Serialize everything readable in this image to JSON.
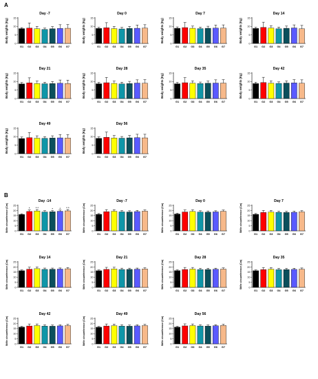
{
  "panels": [
    {
      "label": "A"
    },
    {
      "label": "B"
    }
  ],
  "colors": [
    "#000000",
    "#ff0000",
    "#ffff00",
    "#0f96a8",
    "#0b4f5c",
    "#5a5aff",
    "#f7b98a"
  ],
  "chart_data": [
    {
      "type": "bar",
      "panel": "A",
      "title": "Day -7",
      "ylabel": "Body weights (Kg)",
      "ylim": [
        0,
        15
      ],
      "yticks": [
        0,
        5,
        10,
        15
      ],
      "categories": [
        "G1",
        "G2",
        "G3",
        "G4",
        "G5",
        "G6",
        "G7"
      ],
      "values": [
        8.7,
        9.0,
        8.6,
        8.2,
        8.6,
        8.8,
        8.9
      ],
      "errors": [
        0.6,
        3.0,
        1.4,
        0.8,
        1.3,
        2.2,
        2.2
      ],
      "sig": [
        "",
        "",
        "",
        "",
        "",
        "",
        ""
      ]
    },
    {
      "type": "bar",
      "panel": "A",
      "title": "Day 0",
      "ylabel": "Body weights (Kg)",
      "ylim": [
        0,
        15
      ],
      "yticks": [
        0,
        5,
        10,
        15
      ],
      "categories": [
        "G1",
        "G2",
        "G3",
        "G4",
        "G5",
        "G6",
        "G7"
      ],
      "values": [
        8.8,
        9.2,
        8.7,
        8.5,
        8.8,
        8.9,
        9.0
      ],
      "errors": [
        0.7,
        3.0,
        1.3,
        0.9,
        1.2,
        1.9,
        2.0
      ],
      "sig": [
        "",
        "",
        "",
        "",
        "",
        "",
        ""
      ]
    },
    {
      "type": "bar",
      "panel": "A",
      "title": "Day 7",
      "ylabel": "Body weights (Kg)",
      "ylim": [
        0,
        15
      ],
      "yticks": [
        0,
        5,
        10,
        15
      ],
      "categories": [
        "G1",
        "G2",
        "G3",
        "G4",
        "G5",
        "G6",
        "G7"
      ],
      "values": [
        8.9,
        9.3,
        8.9,
        8.7,
        8.9,
        9.0,
        9.0
      ],
      "errors": [
        0.8,
        3.0,
        1.3,
        0.9,
        1.2,
        1.8,
        1.9
      ],
      "sig": [
        "",
        "",
        "",
        "",
        "",
        "",
        ""
      ]
    },
    {
      "type": "bar",
      "panel": "A",
      "title": "Day 14",
      "ylabel": "Body weights (Kg)",
      "ylim": [
        0,
        15
      ],
      "yticks": [
        0,
        5,
        10,
        15
      ],
      "categories": [
        "G1",
        "G2",
        "G3",
        "G4",
        "G5",
        "G6",
        "G7"
      ],
      "values": [
        8.8,
        9.4,
        9.0,
        8.6,
        8.9,
        9.1,
        8.6
      ],
      "errors": [
        0.7,
        3.1,
        1.4,
        1.0,
        1.3,
        1.8,
        2.0
      ],
      "sig": [
        "",
        "",
        "",
        "",
        "",
        "",
        ""
      ]
    },
    {
      "type": "bar",
      "panel": "A",
      "title": "Day 21",
      "ylabel": "Body weights (Kg)",
      "ylim": [
        0,
        15
      ],
      "yticks": [
        0,
        5,
        10,
        15
      ],
      "categories": [
        "G1",
        "G2",
        "G3",
        "G4",
        "G5",
        "G6",
        "G7"
      ],
      "values": [
        8.6,
        9.2,
        8.8,
        8.7,
        8.8,
        9.0,
        8.8
      ],
      "errors": [
        0.8,
        3.0,
        1.5,
        0.9,
        1.2,
        1.9,
        2.0
      ],
      "sig": [
        "",
        "",
        "",
        "",
        "",
        "",
        ""
      ]
    },
    {
      "type": "bar",
      "panel": "A",
      "title": "Day 28",
      "ylabel": "Body weights (Kg)",
      "ylim": [
        0,
        15
      ],
      "yticks": [
        0,
        5,
        10,
        15
      ],
      "categories": [
        "G1",
        "G2",
        "G3",
        "G4",
        "G5",
        "G6",
        "G7"
      ],
      "values": [
        8.7,
        9.3,
        8.9,
        8.6,
        8.8,
        9.1,
        9.0
      ],
      "errors": [
        0.8,
        3.1,
        1.4,
        1.0,
        1.3,
        1.9,
        2.1
      ],
      "sig": [
        "",
        "",
        "",
        "",
        "",
        "",
        ""
      ]
    },
    {
      "type": "bar",
      "panel": "A",
      "title": "Day 35",
      "ylabel": "Body weights (Kg)",
      "ylim": [
        0,
        15
      ],
      "yticks": [
        0,
        5,
        10,
        15
      ],
      "categories": [
        "G1",
        "G2",
        "G3",
        "G4",
        "G5",
        "G6",
        "G7"
      ],
      "values": [
        8.7,
        9.3,
        9.0,
        8.8,
        9.0,
        9.1,
        9.1
      ],
      "errors": [
        0.8,
        3.0,
        1.4,
        0.9,
        1.3,
        1.9,
        2.0
      ],
      "sig": [
        "",
        "",
        "",
        "",
        "",
        "",
        ""
      ]
    },
    {
      "type": "bar",
      "panel": "A",
      "title": "Day 42",
      "ylabel": "Body weights (Kg)",
      "ylim": [
        0,
        15
      ],
      "yticks": [
        0,
        5,
        10,
        15
      ],
      "categories": [
        "G1",
        "G2",
        "G3",
        "G4",
        "G5",
        "G6",
        "G7"
      ],
      "values": [
        8.8,
        9.4,
        9.0,
        8.9,
        9.1,
        9.2,
        9.0
      ],
      "errors": [
        0.8,
        3.1,
        1.4,
        0.9,
        1.3,
        1.9,
        2.0
      ],
      "sig": [
        "",
        "",
        "",
        "",
        "",
        "",
        ""
      ]
    },
    {
      "type": "bar",
      "panel": "A",
      "title": "Day 49",
      "ylabel": "Body weights (Kg)",
      "ylim": [
        0,
        15
      ],
      "yticks": [
        0,
        5,
        10,
        15
      ],
      "categories": [
        "G1",
        "G2",
        "G3",
        "G4",
        "G5",
        "G6",
        "G7"
      ],
      "values": [
        8.9,
        9.4,
        9.1,
        9.0,
        9.2,
        9.3,
        9.2
      ],
      "errors": [
        0.9,
        3.0,
        1.4,
        1.0,
        1.3,
        1.9,
        2.0
      ],
      "sig": [
        "",
        "",
        "",
        "",
        "",
        "",
        ""
      ]
    },
    {
      "type": "bar",
      "panel": "A",
      "title": "Day 56",
      "ylabel": "Body weights (Kg)",
      "ylim": [
        0,
        15
      ],
      "yticks": [
        0,
        5,
        10,
        15
      ],
      "categories": [
        "G1",
        "G2",
        "G3",
        "G4",
        "G5",
        "G6",
        "G7"
      ],
      "values": [
        9.0,
        9.6,
        9.2,
        9.1,
        9.3,
        9.4,
        9.3
      ],
      "errors": [
        0.9,
        3.1,
        1.5,
        1.0,
        1.4,
        2.0,
        2.1
      ],
      "sig": [
        "",
        "",
        "",
        "",
        "",
        "",
        ""
      ]
    },
    {
      "type": "bar",
      "panel": "B",
      "title": "Day -14",
      "ylabel": "Stifle circumference (Cm)",
      "ylim": [
        0,
        25
      ],
      "yticks": [
        0,
        5,
        10,
        15,
        20,
        25
      ],
      "categories": [
        "G1",
        "G2",
        "G3",
        "G4",
        "G5",
        "G6",
        "G7"
      ],
      "values": [
        16.0,
        19.0,
        19.5,
        18.5,
        18.7,
        19.2,
        19.6
      ],
      "errors": [
        0.8,
        1.5,
        1.4,
        1.3,
        1.2,
        1.2,
        1.3
      ],
      "sig": [
        "",
        "*",
        "* *",
        "",
        "*",
        "*",
        "* *"
      ]
    },
    {
      "type": "bar",
      "panel": "B",
      "title": "Day -7",
      "ylabel": "Stifle circumference (Cm)",
      "ylim": [
        0,
        25
      ],
      "yticks": [
        0,
        5,
        10,
        15,
        20,
        25
      ],
      "categories": [
        "G1",
        "G2",
        "G3",
        "G4",
        "G5",
        "G6",
        "G7"
      ],
      "values": [
        16.2,
        18.8,
        19.2,
        18.6,
        18.5,
        18.9,
        19.3
      ],
      "errors": [
        0.8,
        2.0,
        1.6,
        1.3,
        1.2,
        1.1,
        1.2
      ],
      "sig": [
        "",
        "",
        "",
        "",
        "",
        "",
        ""
      ]
    },
    {
      "type": "bar",
      "panel": "B",
      "title": "Day 0",
      "ylabel": "Stifle circumference (Cm)",
      "ylim": [
        0,
        25
      ],
      "yticks": [
        0,
        5,
        10,
        15,
        20,
        25
      ],
      "categories": [
        "G1",
        "G2",
        "G3",
        "G4",
        "G5",
        "G6",
        "G7"
      ],
      "values": [
        16.5,
        18.5,
        19.0,
        18.4,
        18.3,
        18.6,
        19.2
      ],
      "errors": [
        0.8,
        2.0,
        1.6,
        1.3,
        1.2,
        1.1,
        1.2
      ],
      "sig": [
        "",
        "",
        "",
        "",
        "",
        "",
        ""
      ]
    },
    {
      "type": "bar",
      "panel": "B",
      "title": "Day 7",
      "ylabel": "Stifle circumference (Cm)",
      "ylim": [
        0,
        25
      ],
      "yticks": [
        0,
        5,
        10,
        15,
        20,
        25
      ],
      "categories": [
        "G1",
        "G2",
        "G3",
        "G4",
        "G5",
        "G6",
        "G7"
      ],
      "values": [
        16.2,
        18.0,
        18.4,
        18.1,
        18.0,
        18.2,
        18.6
      ],
      "errors": [
        0.8,
        2.0,
        1.6,
        1.3,
        1.2,
        1.1,
        1.2
      ],
      "sig": [
        "",
        "",
        "",
        "",
        "",
        "",
        ""
      ]
    },
    {
      "type": "bar",
      "panel": "B",
      "title": "Day 14",
      "ylabel": "Stifle circumference (Cm)",
      "ylim": [
        0,
        25
      ],
      "yticks": [
        0,
        5,
        10,
        15,
        20,
        25
      ],
      "categories": [
        "G1",
        "G2",
        "G3",
        "G4",
        "G5",
        "G6",
        "G7"
      ],
      "values": [
        16.3,
        17.8,
        18.3,
        17.6,
        17.7,
        17.9,
        18.2
      ],
      "errors": [
        0.8,
        2.0,
        1.6,
        1.3,
        1.2,
        1.1,
        1.2
      ],
      "sig": [
        "",
        "",
        "",
        "",
        "",
        "",
        ""
      ]
    },
    {
      "type": "bar",
      "panel": "B",
      "title": "Day 21",
      "ylabel": "Stifle circumference (Cm)",
      "ylim": [
        0,
        25
      ],
      "yticks": [
        0,
        5,
        10,
        15,
        20,
        25
      ],
      "categories": [
        "G1",
        "G2",
        "G3",
        "G4",
        "G5",
        "G6",
        "G7"
      ],
      "values": [
        16.3,
        17.6,
        18.1,
        17.5,
        17.6,
        17.8,
        18.0
      ],
      "errors": [
        0.8,
        2.0,
        1.6,
        1.3,
        1.2,
        1.1,
        1.2
      ],
      "sig": [
        "",
        "",
        "",
        "",
        "",
        "",
        ""
      ]
    },
    {
      "type": "bar",
      "panel": "B",
      "title": "Day 28",
      "ylabel": "Stifle circumference (Cm)",
      "ylim": [
        0,
        25
      ],
      "yticks": [
        0,
        5,
        10,
        15,
        20,
        25
      ],
      "categories": [
        "G1",
        "G2",
        "G3",
        "G4",
        "G5",
        "G6",
        "G7"
      ],
      "values": [
        16.4,
        17.5,
        17.9,
        17.4,
        17.5,
        17.7,
        17.9
      ],
      "errors": [
        0.8,
        2.0,
        1.6,
        1.3,
        1.2,
        1.1,
        1.2
      ],
      "sig": [
        "",
        "",
        "",
        "",
        "",
        "",
        ""
      ]
    },
    {
      "type": "bar",
      "panel": "B",
      "title": "Day 35",
      "ylabel": "Stifle circumference (Cm)",
      "ylim": [
        0,
        25
      ],
      "yticks": [
        0,
        5,
        10,
        15,
        20,
        25
      ],
      "categories": [
        "G1",
        "G2",
        "G3",
        "G4",
        "G5",
        "G6",
        "G7"
      ],
      "values": [
        16.3,
        17.4,
        17.8,
        17.3,
        17.4,
        17.6,
        17.8
      ],
      "errors": [
        0.8,
        2.0,
        1.6,
        1.3,
        1.2,
        1.1,
        1.2
      ],
      "sig": [
        "",
        "",
        "",
        "",
        "",
        "",
        ""
      ]
    },
    {
      "type": "bar",
      "panel": "B",
      "title": "Day 42",
      "ylabel": "Stifle circumference (Cm)",
      "ylim": [
        0,
        25
      ],
      "yticks": [
        0,
        5,
        10,
        15,
        20,
        25
      ],
      "categories": [
        "G1",
        "G2",
        "G3",
        "G4",
        "G5",
        "G6",
        "G7"
      ],
      "values": [
        16.4,
        17.5,
        17.9,
        17.4,
        17.3,
        17.6,
        17.9
      ],
      "errors": [
        0.8,
        2.0,
        1.6,
        1.3,
        1.2,
        1.1,
        1.2
      ],
      "sig": [
        "",
        "",
        "",
        "",
        "",
        "",
        ""
      ]
    },
    {
      "type": "bar",
      "panel": "B",
      "title": "Day 49",
      "ylabel": "Stifle circumference (Cm)",
      "ylim": [
        0,
        25
      ],
      "yticks": [
        0,
        5,
        10,
        15,
        20,
        25
      ],
      "categories": [
        "G1",
        "G2",
        "G3",
        "G4",
        "G5",
        "G6",
        "G7"
      ],
      "values": [
        16.3,
        17.5,
        17.8,
        17.4,
        17.3,
        17.6,
        17.9
      ],
      "errors": [
        0.8,
        2.0,
        1.6,
        1.3,
        1.2,
        1.1,
        1.2
      ],
      "sig": [
        "",
        "",
        "",
        "",
        "",
        "",
        ""
      ]
    },
    {
      "type": "bar",
      "panel": "B",
      "title": "Day 56",
      "ylabel": "Stifle circumference (Cm)",
      "ylim": [
        0,
        25
      ],
      "yticks": [
        0,
        5,
        10,
        15,
        20,
        25
      ],
      "categories": [
        "G1",
        "G2",
        "G3",
        "G4",
        "G5",
        "G6",
        "G7"
      ],
      "values": [
        16.4,
        17.6,
        17.9,
        17.5,
        17.4,
        17.7,
        18.0
      ],
      "errors": [
        0.8,
        2.0,
        1.6,
        1.3,
        1.2,
        1.1,
        1.2
      ],
      "sig": [
        "",
        "",
        "",
        "",
        "",
        "",
        ""
      ]
    }
  ]
}
